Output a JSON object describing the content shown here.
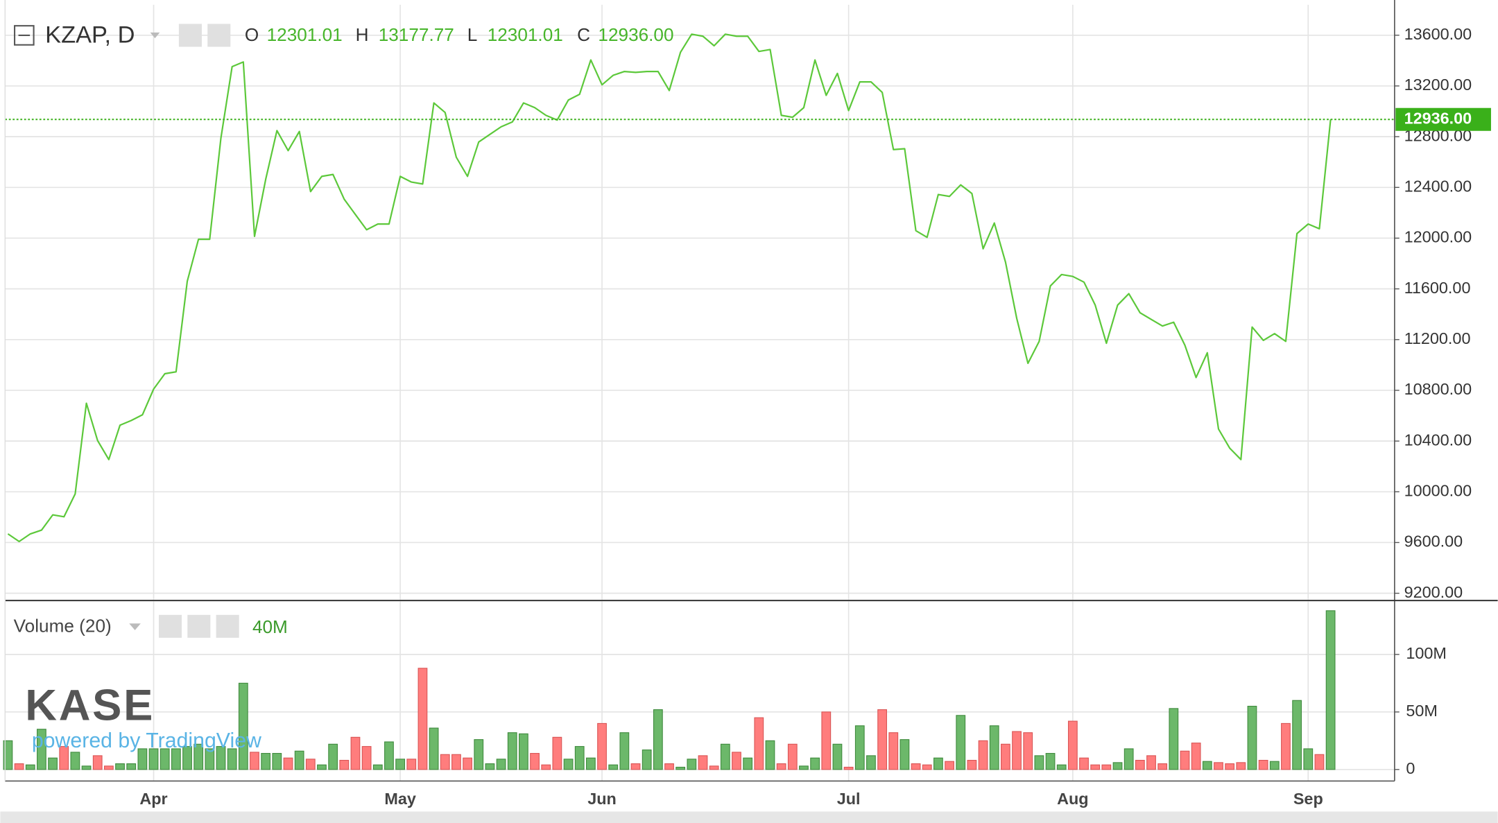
{
  "header": {
    "symbol": "KZAP, D",
    "open_label": "O",
    "open": "12301.01",
    "high_label": "H",
    "high": "13177.77",
    "low_label": "L",
    "low": "12301.01",
    "close_label": "C",
    "close": "12936.00"
  },
  "watermark": {
    "logo": "KASE",
    "caption": "powered by TradingView"
  },
  "chart_data": [
    {
      "type": "line",
      "categories": [
        null,
        null,
        null,
        null,
        null,
        null,
        null,
        null,
        null,
        null,
        null,
        null,
        null,
        "Apr",
        null,
        null,
        null,
        null,
        null,
        null,
        null,
        null,
        null,
        null,
        null,
        null,
        null,
        null,
        null,
        null,
        null,
        null,
        null,
        null,
        null,
        "May",
        null,
        null,
        null,
        null,
        null,
        null,
        null,
        null,
        null,
        null,
        null,
        null,
        null,
        null,
        null,
        null,
        null,
        "Jun",
        null,
        null,
        null,
        null,
        null,
        null,
        null,
        null,
        null,
        null,
        null,
        null,
        null,
        null,
        null,
        null,
        null,
        null,
        null,
        null,
        null,
        "Jul",
        null,
        null,
        null,
        null,
        null,
        null,
        null,
        null,
        null,
        null,
        null,
        null,
        null,
        null,
        null,
        null,
        null,
        null,
        null,
        "Aug",
        null,
        null,
        null,
        null,
        null,
        null,
        null,
        null,
        null,
        null,
        null,
        null,
        null,
        null,
        null,
        null,
        null,
        null,
        null,
        null,
        "Sep",
        null,
        null
      ],
      "values": [
        9668,
        9608,
        9668,
        9698,
        9818,
        9803,
        9983,
        10698,
        10404,
        10254,
        10525,
        10562,
        10607,
        10810,
        10931,
        10946,
        11660,
        11991,
        11991,
        12788,
        13352,
        13389,
        12014,
        12465,
        12848,
        12690,
        12841,
        12367,
        12487,
        12502,
        12307,
        12186,
        12066,
        12111,
        12111,
        12487,
        12442,
        12427,
        13066,
        12991,
        12638,
        12487,
        12758,
        12818,
        12878,
        12916,
        13066,
        13029,
        12968,
        12931,
        13089,
        13134,
        13405,
        13209,
        13284,
        13314,
        13307,
        13314,
        13314,
        13164,
        13465,
        13608,
        13592,
        13517,
        13608,
        13592,
        13592,
        13472,
        13487,
        12968,
        12953,
        13029,
        13405,
        13126,
        13299,
        13006,
        13232,
        13232,
        13149,
        12698,
        12705,
        12059,
        12006,
        12344,
        12329,
        12420,
        12352,
        11916,
        12119,
        11810,
        11367,
        11013,
        11186,
        11623,
        11713,
        11698,
        11653,
        11472,
        11171,
        11472,
        11562,
        11412,
        11359,
        11307,
        11337,
        11156,
        10901,
        11096,
        10495,
        10344,
        10254,
        11299,
        11194,
        11247,
        11186,
        12036,
        12111,
        12074,
        12936
      ],
      "color": "#5cc83a",
      "ylim": [
        9150,
        13840
      ],
      "yticks": [
        {
          "value": 9200,
          "label": "9200.00"
        },
        {
          "value": 9600,
          "label": "9600.00"
        },
        {
          "value": 10000,
          "label": "10000.00"
        },
        {
          "value": 10400,
          "label": "10400.00"
        },
        {
          "value": 10800,
          "label": "10800.00"
        },
        {
          "value": 11200,
          "label": "11200.00"
        },
        {
          "value": 11600,
          "label": "11600.00"
        },
        {
          "value": 12000,
          "label": "12000.00"
        },
        {
          "value": 12400,
          "label": "12400.00"
        },
        {
          "value": 12800,
          "label": "12800.00"
        },
        {
          "value": 13200,
          "label": "13200.00"
        },
        {
          "value": 13600,
          "label": "13600.00"
        }
      ],
      "grid": true,
      "last_value": {
        "value": 12936,
        "label": "12936.00"
      }
    },
    {
      "type": "bar",
      "title": "Volume (20)",
      "legend_value": "40M",
      "categories": [
        null,
        null,
        null,
        null,
        null,
        null,
        null,
        null,
        null,
        null,
        null,
        null,
        null,
        "Apr",
        null,
        null,
        null,
        null,
        null,
        null,
        null,
        null,
        null,
        null,
        null,
        null,
        null,
        null,
        null,
        null,
        null,
        null,
        null,
        null,
        null,
        "May",
        null,
        null,
        null,
        null,
        null,
        null,
        null,
        null,
        null,
        null,
        null,
        null,
        null,
        null,
        null,
        null,
        null,
        "Jun",
        null,
        null,
        null,
        null,
        null,
        null,
        null,
        null,
        null,
        null,
        null,
        null,
        null,
        null,
        null,
        null,
        null,
        null,
        null,
        null,
        null,
        "Jul",
        null,
        null,
        null,
        null,
        null,
        null,
        null,
        null,
        null,
        null,
        null,
        null,
        null,
        null,
        null,
        null,
        null,
        null,
        null,
        "Aug",
        null,
        null,
        null,
        null,
        null,
        null,
        null,
        null,
        null,
        null,
        null,
        null,
        null,
        null,
        null,
        null,
        null,
        null,
        null,
        null,
        "Sep",
        null,
        null
      ],
      "values": [
        25000000,
        5000000,
        4000000,
        35000000,
        10000000,
        20000000,
        15000000,
        3000000,
        12000000,
        3000000,
        5000000,
        5000000,
        18000000,
        18000000,
        18000000,
        18000000,
        20000000,
        22000000,
        18000000,
        20000000,
        18000000,
        75000000,
        15000000,
        14000000,
        14000000,
        10000000,
        16000000,
        9000000,
        4000000,
        22000000,
        8000000,
        28000000,
        20000000,
        4000000,
        24000000,
        9000000,
        9000000,
        88000000,
        36000000,
        13000000,
        13000000,
        10000000,
        26000000,
        5000000,
        9000000,
        32000000,
        31000000,
        14000000,
        4000000,
        28000000,
        9000000,
        20000000,
        10000000,
        40000000,
        4000000,
        32000000,
        5000000,
        17000000,
        52000000,
        5000000,
        2000000,
        9000000,
        12000000,
        3000000,
        22000000,
        15000000,
        10000000,
        45000000,
        25000000,
        5000000,
        22000000,
        3000000,
        10000000,
        50000000,
        22000000,
        2000000,
        38000000,
        12000000,
        52000000,
        32000000,
        26000000,
        5000000,
        4000000,
        10000000,
        7000000,
        47000000,
        8000000,
        25000000,
        38000000,
        22000000,
        33000000,
        32000000,
        12000000,
        14000000,
        4000000,
        42000000,
        10000000,
        4000000,
        4000000,
        6000000,
        18000000,
        8000000,
        12000000,
        5000000,
        53000000,
        16000000,
        23000000,
        7000000,
        6000000,
        5000000,
        6000000,
        55000000,
        8000000,
        7000000,
        40000000,
        60000000,
        18000000,
        13000000,
        138000000
      ],
      "up_color": "#6cb86a",
      "down_color": "#ff7d7d",
      "ylim": [
        -10000000,
        146000000
      ],
      "yticks": [
        {
          "value": 0,
          "label": "0"
        },
        {
          "value": 50000000,
          "label": "50M"
        },
        {
          "value": 100000000,
          "label": "100M"
        }
      ],
      "grid": true
    }
  ]
}
